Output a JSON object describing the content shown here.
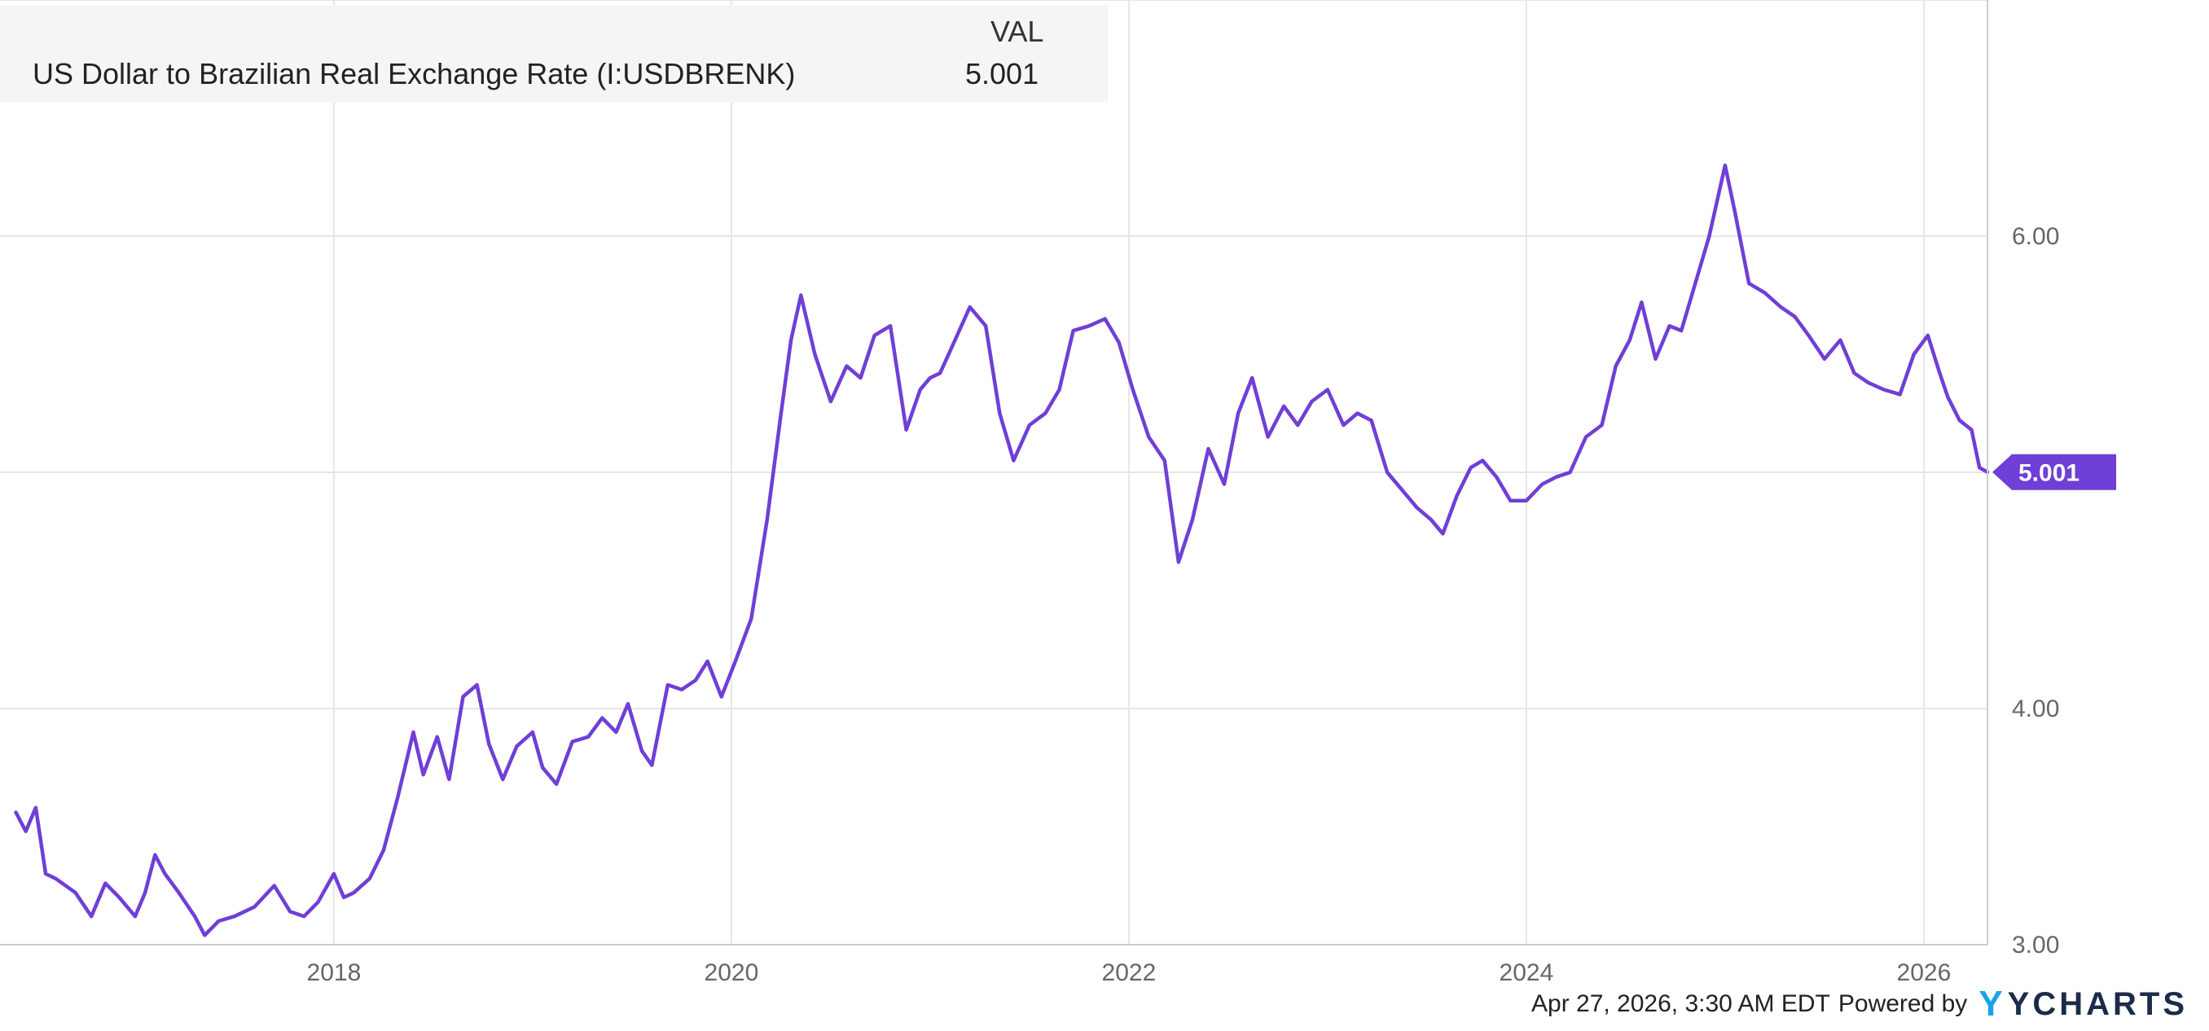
{
  "legend": {
    "column_header": "VAL",
    "series_name": "US Dollar to Brazilian Real Exchange Rate (I:USDBRENK)",
    "series_value": "5.001"
  },
  "current_value_tag": "5.001",
  "footer": {
    "timestamp": "Apr 27, 2026, 3:30 AM EDT",
    "powered_by": "Powered by",
    "brand": "YCHARTS",
    "brand_mark": "Y"
  },
  "colors": {
    "line": "#6f3fd6",
    "tag": "#6f3fd6",
    "grid": "#e6e6e6",
    "brand_accent": "#1aa3e8"
  },
  "chart_data": {
    "type": "line",
    "series": [
      {
        "name": "US Dollar to Brazilian Real Exchange Rate (I:USDBRENK)",
        "points": [
          [
            2016.4,
            3.56
          ],
          [
            2016.45,
            3.48
          ],
          [
            2016.5,
            3.58
          ],
          [
            2016.55,
            3.3
          ],
          [
            2016.6,
            3.28
          ],
          [
            2016.7,
            3.22
          ],
          [
            2016.78,
            3.12
          ],
          [
            2016.85,
            3.26
          ],
          [
            2016.92,
            3.2
          ],
          [
            2017.0,
            3.12
          ],
          [
            2017.05,
            3.22
          ],
          [
            2017.1,
            3.38
          ],
          [
            2017.15,
            3.3
          ],
          [
            2017.22,
            3.22
          ],
          [
            2017.3,
            3.12
          ],
          [
            2017.35,
            3.04
          ],
          [
            2017.42,
            3.1
          ],
          [
            2017.5,
            3.12
          ],
          [
            2017.6,
            3.16
          ],
          [
            2017.7,
            3.25
          ],
          [
            2017.78,
            3.14
          ],
          [
            2017.85,
            3.12
          ],
          [
            2017.92,
            3.18
          ],
          [
            2018.0,
            3.3
          ],
          [
            2018.05,
            3.2
          ],
          [
            2018.1,
            3.22
          ],
          [
            2018.18,
            3.28
          ],
          [
            2018.25,
            3.4
          ],
          [
            2018.32,
            3.62
          ],
          [
            2018.4,
            3.9
          ],
          [
            2018.45,
            3.72
          ],
          [
            2018.52,
            3.88
          ],
          [
            2018.58,
            3.7
          ],
          [
            2018.65,
            4.05
          ],
          [
            2018.72,
            4.1
          ],
          [
            2018.78,
            3.85
          ],
          [
            2018.85,
            3.7
          ],
          [
            2018.92,
            3.84
          ],
          [
            2019.0,
            3.9
          ],
          [
            2019.05,
            3.75
          ],
          [
            2019.12,
            3.68
          ],
          [
            2019.2,
            3.86
          ],
          [
            2019.28,
            3.88
          ],
          [
            2019.35,
            3.96
          ],
          [
            2019.42,
            3.9
          ],
          [
            2019.48,
            4.02
          ],
          [
            2019.55,
            3.82
          ],
          [
            2019.6,
            3.76
          ],
          [
            2019.68,
            4.1
          ],
          [
            2019.75,
            4.08
          ],
          [
            2019.82,
            4.12
          ],
          [
            2019.88,
            4.2
          ],
          [
            2019.95,
            4.05
          ],
          [
            2020.02,
            4.2
          ],
          [
            2020.1,
            4.38
          ],
          [
            2020.18,
            4.8
          ],
          [
            2020.25,
            5.25
          ],
          [
            2020.3,
            5.56
          ],
          [
            2020.35,
            5.75
          ],
          [
            2020.42,
            5.5
          ],
          [
            2020.5,
            5.3
          ],
          [
            2020.58,
            5.45
          ],
          [
            2020.65,
            5.4
          ],
          [
            2020.72,
            5.58
          ],
          [
            2020.8,
            5.62
          ],
          [
            2020.88,
            5.18
          ],
          [
            2020.95,
            5.35
          ],
          [
            2021.0,
            5.4
          ],
          [
            2021.05,
            5.42
          ],
          [
            2021.12,
            5.55
          ],
          [
            2021.2,
            5.7
          ],
          [
            2021.28,
            5.62
          ],
          [
            2021.35,
            5.25
          ],
          [
            2021.42,
            5.05
          ],
          [
            2021.5,
            5.2
          ],
          [
            2021.58,
            5.25
          ],
          [
            2021.65,
            5.35
          ],
          [
            2021.72,
            5.6
          ],
          [
            2021.8,
            5.62
          ],
          [
            2021.88,
            5.65
          ],
          [
            2021.95,
            5.55
          ],
          [
            2022.02,
            5.35
          ],
          [
            2022.1,
            5.15
          ],
          [
            2022.18,
            5.05
          ],
          [
            2022.25,
            4.62
          ],
          [
            2022.32,
            4.8
          ],
          [
            2022.4,
            5.1
          ],
          [
            2022.48,
            4.95
          ],
          [
            2022.55,
            5.25
          ],
          [
            2022.62,
            5.4
          ],
          [
            2022.7,
            5.15
          ],
          [
            2022.78,
            5.28
          ],
          [
            2022.85,
            5.2
          ],
          [
            2022.92,
            5.3
          ],
          [
            2023.0,
            5.35
          ],
          [
            2023.08,
            5.2
          ],
          [
            2023.15,
            5.25
          ],
          [
            2023.22,
            5.22
          ],
          [
            2023.3,
            5.0
          ],
          [
            2023.38,
            4.92
          ],
          [
            2023.45,
            4.85
          ],
          [
            2023.52,
            4.8
          ],
          [
            2023.58,
            4.74
          ],
          [
            2023.65,
            4.9
          ],
          [
            2023.72,
            5.02
          ],
          [
            2023.78,
            5.05
          ],
          [
            2023.85,
            4.98
          ],
          [
            2023.92,
            4.88
          ],
          [
            2024.0,
            4.88
          ],
          [
            2024.08,
            4.95
          ],
          [
            2024.15,
            4.98
          ],
          [
            2024.22,
            5.0
          ],
          [
            2024.3,
            5.15
          ],
          [
            2024.38,
            5.2
          ],
          [
            2024.45,
            5.45
          ],
          [
            2024.52,
            5.56
          ],
          [
            2024.58,
            5.72
          ],
          [
            2024.65,
            5.48
          ],
          [
            2024.72,
            5.62
          ],
          [
            2024.78,
            5.6
          ],
          [
            2024.85,
            5.8
          ],
          [
            2024.92,
            6.0
          ],
          [
            2025.0,
            6.3
          ],
          [
            2025.05,
            6.1
          ],
          [
            2025.12,
            5.8
          ],
          [
            2025.2,
            5.76
          ],
          [
            2025.28,
            5.7
          ],
          [
            2025.35,
            5.66
          ],
          [
            2025.42,
            5.58
          ],
          [
            2025.5,
            5.48
          ],
          [
            2025.58,
            5.56
          ],
          [
            2025.65,
            5.42
          ],
          [
            2025.72,
            5.38
          ],
          [
            2025.8,
            5.35
          ],
          [
            2025.88,
            5.33
          ],
          [
            2025.95,
            5.5
          ],
          [
            2026.02,
            5.58
          ],
          [
            2026.08,
            5.42
          ],
          [
            2026.12,
            5.32
          ],
          [
            2026.18,
            5.22
          ],
          [
            2026.24,
            5.18
          ],
          [
            2026.28,
            5.02
          ],
          [
            2026.32,
            5.001
          ]
        ]
      }
    ],
    "x_ticks": [
      "2018",
      "2020",
      "2022",
      "2024",
      "2026"
    ],
    "y_ticks": [
      "3.00",
      "4.00",
      "6.00"
    ],
    "xlim": [
      2016.32,
      2026.32
    ],
    "ylim": [
      3.0,
      7.0
    ],
    "y_axis_position": "right",
    "grid": true,
    "legend_position": "top-left",
    "title": "",
    "xlabel": "",
    "ylabel": ""
  }
}
